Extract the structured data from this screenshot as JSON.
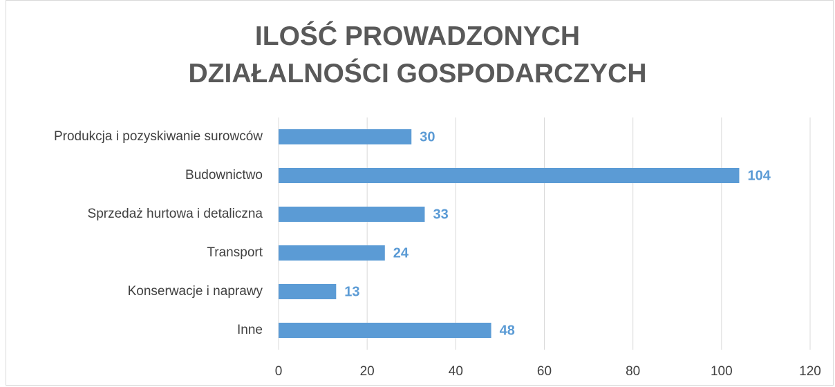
{
  "chart_data": {
    "type": "bar",
    "orientation": "horizontal",
    "title": "ILOŚĆ PROWADZONYCH DZIAŁALNOŚCI GOSPODARCZYCH",
    "categories": [
      "Produkcja i pozyskiwanie surowców",
      "Budownictwo",
      "Sprzedaż hurtowa i detaliczna",
      "Transport",
      "Konserwacje i naprawy",
      "Inne"
    ],
    "values": [
      30,
      104,
      33,
      24,
      13,
      48
    ],
    "color": "#5b9bd5",
    "xlim": [
      0,
      120
    ],
    "xticks": [
      0,
      20,
      40,
      60,
      80,
      100,
      120
    ],
    "grid": true
  }
}
